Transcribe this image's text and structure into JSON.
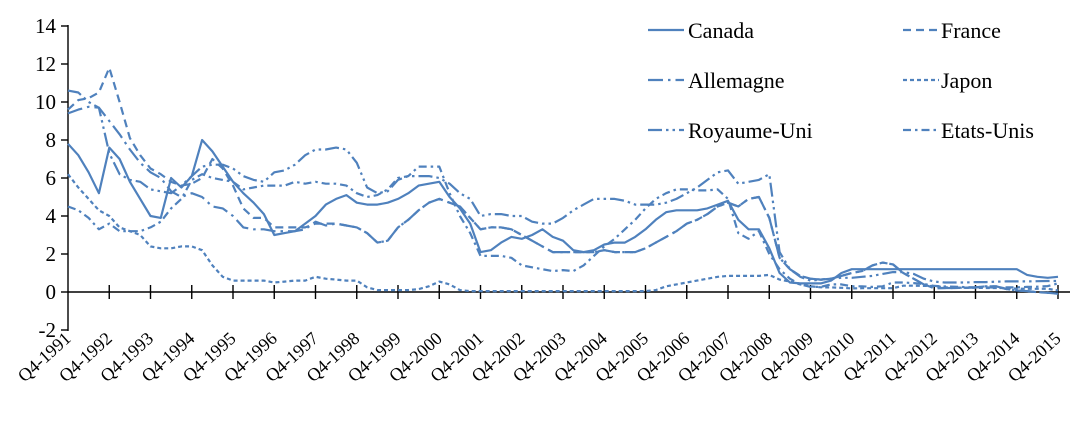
{
  "chart_data": {
    "type": "line",
    "title": "",
    "xlabel": "",
    "ylabel": "",
    "ylim": [
      -2,
      14
    ],
    "y_ticks": [
      14,
      12,
      10,
      8,
      6,
      4,
      2,
      0,
      -2
    ],
    "x_tick_labels": [
      "Q4-1991",
      "Q4-1992",
      "Q4-1993",
      "Q4-1994",
      "Q4-1995",
      "Q4-1996",
      "Q4-1997",
      "Q4-1998",
      "Q4-1999",
      "Q4-2000",
      "Q4-2001",
      "Q4-2002",
      "Q4-2003",
      "Q4-2004",
      "Q4-2005",
      "Q4-2006",
      "Q4-2007",
      "Q4-2008",
      "Q4-2009",
      "Q4-2010",
      "Q4-2011",
      "Q4-2012",
      "Q4-2013",
      "Q4-2014",
      "Q4-2015"
    ],
    "frequency": "quarterly",
    "x_range": [
      "Q4-1991",
      "Q4-2015"
    ],
    "grid": false,
    "line_color": "#4f81bd",
    "axis_color": "#000000",
    "legend": {
      "position": "top-right-inside",
      "columns": [
        [
          "Canada",
          "Allemagne",
          "Royaume-Uni"
        ],
        [
          "France",
          "Japon",
          "Etats-Unis"
        ]
      ]
    },
    "series": [
      {
        "name": "Canada",
        "dash": "solid",
        "values": [
          7.8,
          7.2,
          6.3,
          5.2,
          7.6,
          7.0,
          5.8,
          4.9,
          4.0,
          3.9,
          6.0,
          5.5,
          6.1,
          8.0,
          7.4,
          6.6,
          5.8,
          5.2,
          4.7,
          4.1,
          3.0,
          3.1,
          3.2,
          3.6,
          4.0,
          4.6,
          4.9,
          5.1,
          4.7,
          4.6,
          4.6,
          4.7,
          4.9,
          5.2,
          5.6,
          5.7,
          5.8,
          5.0,
          4.4,
          3.6,
          2.1,
          2.2,
          2.6,
          2.9,
          2.8,
          3.0,
          3.3,
          2.9,
          2.7,
          2.2,
          2.1,
          2.2,
          2.5,
          2.6,
          2.6,
          2.9,
          3.3,
          3.8,
          4.2,
          4.3,
          4.3,
          4.3,
          4.4,
          4.6,
          4.8,
          3.8,
          3.3,
          3.3,
          2.3,
          1.0,
          0.5,
          0.45,
          0.45,
          0.45,
          0.6,
          1.0,
          1.2,
          1.2,
          1.2,
          1.2,
          1.2,
          1.2,
          1.2,
          1.2,
          1.2,
          1.2,
          1.2,
          1.2,
          1.2,
          1.2,
          1.2,
          1.2,
          1.2,
          0.9,
          0.8,
          0.75,
          0.8
        ]
      },
      {
        "name": "France",
        "dash": "dashed",
        "values": [
          9.6,
          10.1,
          10.2,
          10.5,
          11.8,
          10.0,
          8.1,
          7.2,
          6.5,
          6.2,
          5.8,
          5.6,
          5.7,
          6.0,
          7.0,
          6.5,
          5.6,
          4.4,
          3.9,
          3.9,
          3.4,
          3.4,
          3.4,
          3.4,
          3.6,
          3.6,
          3.6,
          3.5,
          3.4,
          3.1,
          2.6,
          2.7,
          3.4,
          3.8,
          4.3,
          4.7,
          4.9,
          4.7,
          4.5,
          3.9,
          3.3,
          3.4,
          3.4,
          3.3,
          3.0,
          2.7,
          2.4,
          2.1,
          2.1,
          2.1,
          2.1,
          2.1,
          2.2,
          2.1,
          2.1,
          2.1,
          2.3,
          2.6,
          2.9,
          3.2,
          3.6,
          3.8,
          4.1,
          4.5,
          4.7,
          4.5,
          4.9,
          5.0,
          3.9,
          1.8,
          1.2,
          0.85,
          0.7,
          0.65,
          0.7,
          0.85,
          1.0,
          1.1,
          1.4,
          1.55,
          1.45,
          1.0,
          0.7,
          0.4,
          0.2,
          0.21,
          0.21,
          0.22,
          0.24,
          0.3,
          0.3,
          0.16,
          0.08,
          0.05,
          -0.01,
          -0.04,
          -0.09
        ]
      },
      {
        "name": "Allemagne",
        "dash": "long-dash-dot",
        "values": [
          9.4,
          9.6,
          9.75,
          9.7,
          9.0,
          8.3,
          7.5,
          6.8,
          6.3,
          6.0,
          5.3,
          5.0,
          5.2,
          5.0,
          4.5,
          4.4,
          4.0,
          3.4,
          3.3,
          3.3,
          3.2,
          3.2,
          3.2,
          3.3,
          3.7,
          3.5,
          3.6,
          3.5,
          3.4,
          3.1,
          2.6,
          2.7,
          3.4,
          3.8,
          4.3,
          4.7,
          4.9,
          4.7,
          4.5,
          3.9,
          3.3,
          3.4,
          3.4,
          3.3,
          3.0,
          2.7,
          2.4,
          2.1,
          2.1,
          2.1,
          2.1,
          2.1,
          2.2,
          2.1,
          2.1,
          2.1,
          2.3,
          2.6,
          2.9,
          3.2,
          3.6,
          3.8,
          4.1,
          4.5,
          4.7,
          4.5,
          4.9,
          5.0,
          3.9,
          1.8,
          1.2,
          0.85,
          0.7,
          0.65,
          0.7,
          0.85,
          1.0,
          1.1,
          1.4,
          1.55,
          1.45,
          1.0,
          0.7,
          0.4,
          0.2,
          0.21,
          0.21,
          0.22,
          0.24,
          0.3,
          0.3,
          0.16,
          0.08,
          0.05,
          -0.01,
          -0.04,
          -0.09
        ]
      },
      {
        "name": "Japon",
        "dash": "short-dash",
        "values": [
          6.2,
          5.5,
          4.9,
          4.3,
          4.0,
          3.4,
          3.2,
          3.0,
          2.4,
          2.3,
          2.3,
          2.4,
          2.4,
          2.2,
          1.4,
          0.8,
          0.6,
          0.6,
          0.6,
          0.6,
          0.5,
          0.55,
          0.6,
          0.6,
          0.8,
          0.7,
          0.65,
          0.6,
          0.6,
          0.25,
          0.1,
          0.1,
          0.1,
          0.1,
          0.15,
          0.3,
          0.55,
          0.4,
          0.1,
          0.05,
          0.05,
          0.05,
          0.05,
          0.05,
          0.05,
          0.05,
          0.05,
          0.05,
          0.05,
          0.05,
          0.05,
          0.05,
          0.05,
          0.05,
          0.05,
          0.05,
          0.05,
          0.1,
          0.3,
          0.4,
          0.5,
          0.6,
          0.7,
          0.8,
          0.85,
          0.85,
          0.85,
          0.85,
          0.9,
          0.65,
          0.55,
          0.4,
          0.3,
          0.25,
          0.24,
          0.22,
          0.19,
          0.2,
          0.2,
          0.2,
          0.2,
          0.33,
          0.33,
          0.32,
          0.31,
          0.25,
          0.23,
          0.22,
          0.22,
          0.21,
          0.21,
          0.21,
          0.18,
          0.17,
          0.17,
          0.17,
          0.08
        ]
      },
      {
        "name": "Royaume-Uni",
        "dash": "long-dash-dot-dot",
        "values": [
          10.6,
          10.5,
          10.0,
          9.7,
          7.3,
          6.2,
          5.9,
          5.8,
          5.4,
          5.3,
          5.2,
          5.6,
          6.1,
          6.6,
          6.7,
          6.7,
          6.5,
          6.1,
          5.9,
          5.8,
          6.3,
          6.4,
          6.7,
          7.2,
          7.5,
          7.5,
          7.6,
          7.5,
          6.8,
          5.5,
          5.2,
          5.3,
          5.9,
          6.1,
          6.1,
          6.1,
          6.0,
          5.7,
          5.2,
          4.9,
          4.0,
          4.1,
          4.1,
          4.0,
          4.0,
          3.7,
          3.6,
          3.6,
          3.9,
          4.3,
          4.6,
          4.9,
          4.9,
          4.9,
          4.8,
          4.6,
          4.6,
          4.6,
          4.7,
          4.9,
          5.2,
          5.5,
          5.9,
          6.3,
          6.4,
          5.7,
          5.8,
          5.9,
          6.2,
          2.1,
          1.2,
          0.8,
          0.6,
          0.65,
          0.7,
          0.75,
          0.75,
          0.8,
          0.85,
          0.95,
          1.05,
          1.05,
          0.95,
          0.7,
          0.55,
          0.5,
          0.5,
          0.5,
          0.52,
          0.52,
          0.54,
          0.56,
          0.56,
          0.56,
          0.57,
          0.58,
          0.58
        ]
      },
      {
        "name": "Etats-Unis",
        "dash": "dash-dot",
        "values": [
          4.5,
          4.3,
          3.9,
          3.3,
          3.6,
          3.2,
          3.2,
          3.2,
          3.4,
          3.7,
          4.4,
          4.9,
          5.9,
          6.2,
          6.0,
          5.9,
          5.8,
          5.4,
          5.5,
          5.6,
          5.6,
          5.6,
          5.8,
          5.7,
          5.8,
          5.7,
          5.7,
          5.6,
          5.2,
          5.0,
          5.1,
          5.4,
          6.0,
          6.1,
          6.6,
          6.6,
          6.6,
          5.2,
          4.0,
          3.1,
          1.9,
          1.9,
          1.9,
          1.8,
          1.4,
          1.3,
          1.2,
          1.1,
          1.15,
          1.1,
          1.4,
          1.9,
          2.4,
          2.8,
          3.3,
          3.8,
          4.4,
          4.9,
          5.2,
          5.4,
          5.4,
          5.35,
          5.35,
          5.4,
          4.9,
          3.1,
          2.8,
          3.2,
          2.0,
          1.2,
          0.7,
          0.4,
          0.27,
          0.27,
          0.4,
          0.4,
          0.3,
          0.3,
          0.27,
          0.3,
          0.5,
          0.5,
          0.47,
          0.42,
          0.32,
          0.29,
          0.28,
          0.26,
          0.25,
          0.24,
          0.23,
          0.24,
          0.24,
          0.27,
          0.28,
          0.31,
          0.45
        ]
      }
    ]
  }
}
